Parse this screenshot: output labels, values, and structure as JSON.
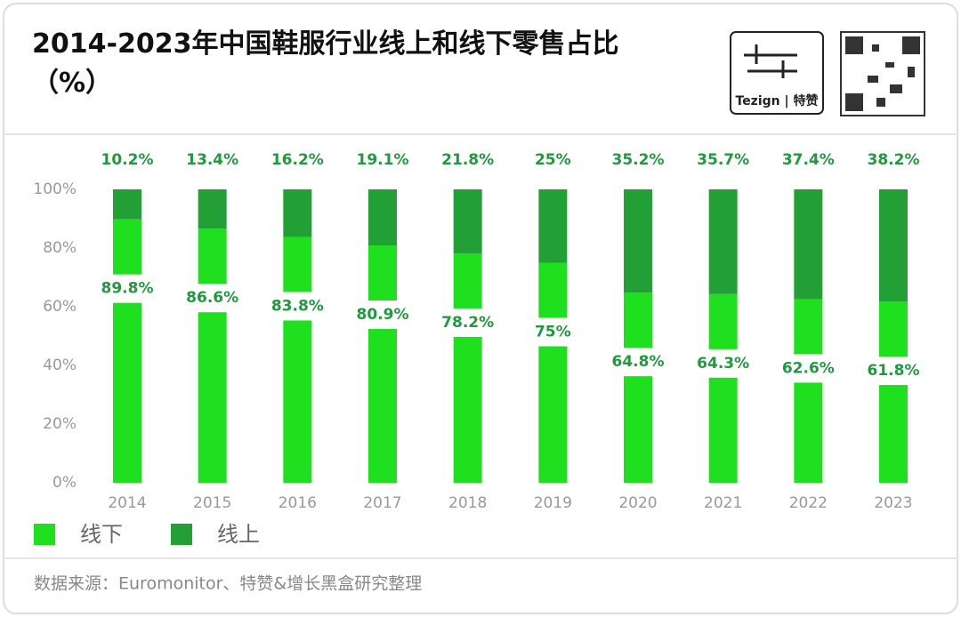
{
  "brand": "Tezign | 特赞",
  "chart_data": {
    "type": "stacked-bar",
    "title": "2014-2023年中国鞋服行业线上和线下零售占比（%）",
    "source": "数据来源：Euromonitor、特赞&增长黑盒研究整理",
    "categories": [
      "2014",
      "2015",
      "2016",
      "2017",
      "2018",
      "2019",
      "2020",
      "2021",
      "2022",
      "2023"
    ],
    "series": [
      {
        "name": "线下",
        "color": "#1fe01f",
        "values": [
          89.8,
          86.6,
          83.8,
          80.9,
          78.2,
          75,
          64.8,
          64.3,
          62.6,
          61.8
        ],
        "value_labels": [
          "89.8%",
          "86.6%",
          "83.8%",
          "80.9%",
          "78.2%",
          "75%",
          "64.8%",
          "64.3%",
          "62.6%",
          "61.8%"
        ]
      },
      {
        "name": "线上",
        "color": "#23a035",
        "values": [
          10.2,
          13.4,
          16.2,
          19.1,
          21.8,
          25,
          35.2,
          35.7,
          37.4,
          38.2
        ],
        "value_labels": [
          "10.2%",
          "13.4%",
          "16.2%",
          "19.1%",
          "21.8%",
          "25%",
          "35.2%",
          "35.7%",
          "37.4%",
          "38.2%"
        ]
      }
    ],
    "ylim": [
      0,
      100
    ],
    "yticks": [
      {
        "value": 0,
        "label": "0%"
      },
      {
        "value": 20,
        "label": "20%"
      },
      {
        "value": 40,
        "label": "40%"
      },
      {
        "value": 60,
        "label": "60%"
      },
      {
        "value": 80,
        "label": "80%"
      },
      {
        "value": 100,
        "label": "100%"
      }
    ],
    "legend": "bottom-left"
  }
}
